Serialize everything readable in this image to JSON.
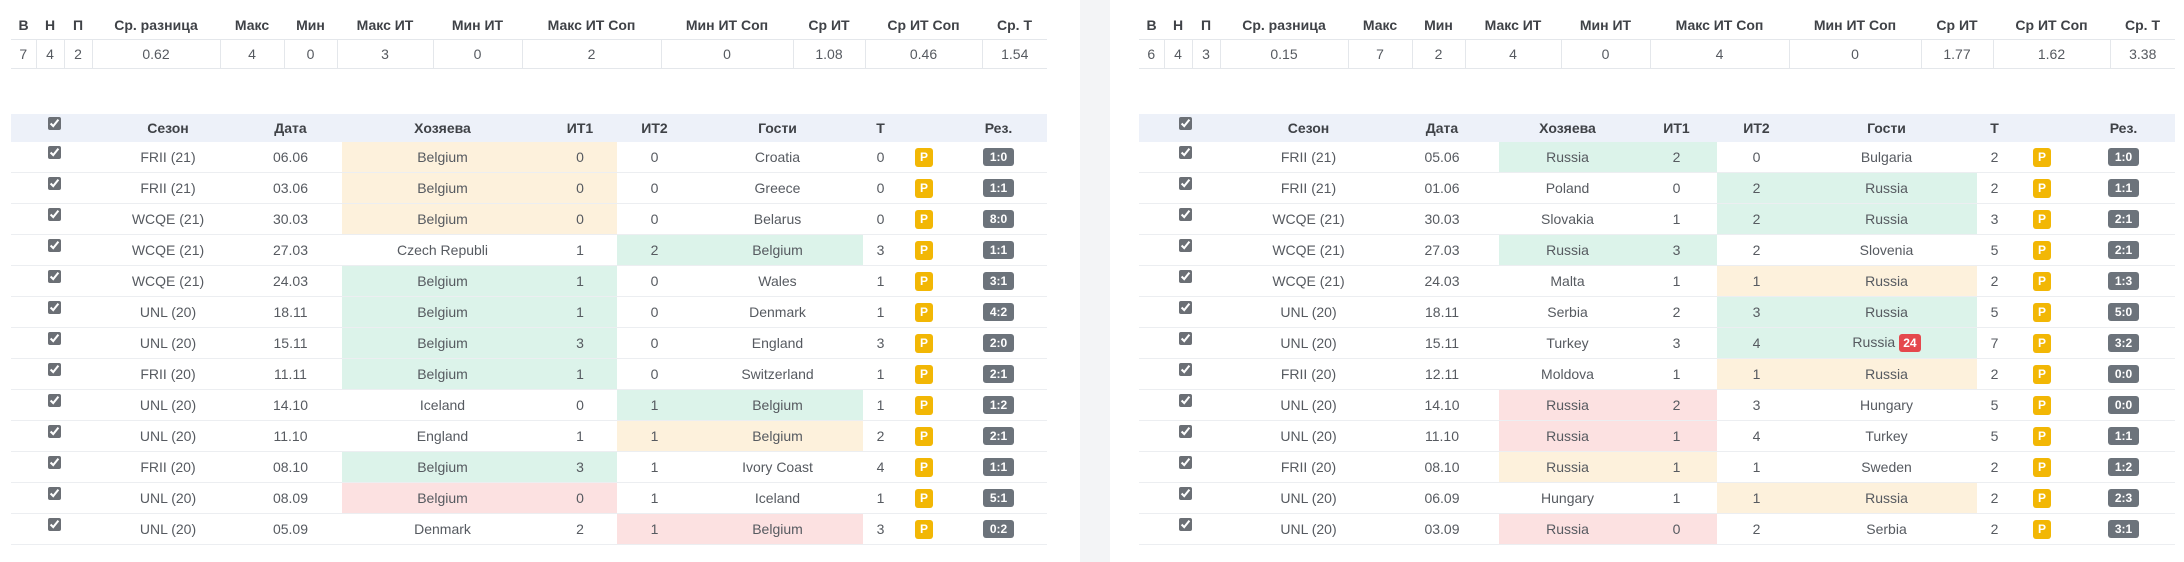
{
  "summary_headers": [
    "В",
    "Н",
    "П",
    "Ср. разница",
    "Макс",
    "Мин",
    "Макс ИТ",
    "Мин ИТ",
    "Макс ИТ Соп",
    "Мин ИТ Соп",
    "Ср ИТ",
    "Ср ИТ Соп",
    "Ср. Т"
  ],
  "match_headers": {
    "select_all_checked": true,
    "season": "Сезон",
    "date": "Дата",
    "home": "Хозяева",
    "it1": "ИТ1",
    "it2": "ИТ2",
    "away": "Гости",
    "total": "Т",
    "result": "Рез."
  },
  "p_badge_label": "P",
  "colors": {
    "win": "#dcf3ea",
    "draw": "#fdf1dc",
    "loss": "#fce1e1",
    "p_badge": "#f2b705",
    "result_badge": "#6c737b",
    "alert_badge": "#e5484d",
    "header_bg": "#edf1f9"
  },
  "icons": {
    "row_select": "checkbox-checked",
    "select_all": "checkbox-checked"
  },
  "panels": [
    {
      "summary_values": [
        "7",
        "4",
        "2",
        "0.62",
        "4",
        "0",
        "3",
        "0",
        "2",
        "0",
        "1.08",
        "0.46",
        "1.54"
      ],
      "rows": [
        {
          "checked": true,
          "season": "FRII (21)",
          "date": "06.06",
          "home": "Belgium",
          "it1": "0",
          "it2": "0",
          "away": "Croatia",
          "total": "0",
          "result": "1:0",
          "highlight": "home",
          "outcome": "draw"
        },
        {
          "checked": true,
          "season": "FRII (21)",
          "date": "03.06",
          "home": "Belgium",
          "it1": "0",
          "it2": "0",
          "away": "Greece",
          "total": "0",
          "result": "1:1",
          "highlight": "home",
          "outcome": "draw"
        },
        {
          "checked": true,
          "season": "WCQE (21)",
          "date": "30.03",
          "home": "Belgium",
          "it1": "0",
          "it2": "0",
          "away": "Belarus",
          "total": "0",
          "result": "8:0",
          "highlight": "home",
          "outcome": "draw"
        },
        {
          "checked": true,
          "season": "WCQE (21)",
          "date": "27.03",
          "home": "Czech Republi",
          "it1": "1",
          "it2": "2",
          "away": "Belgium",
          "total": "3",
          "result": "1:1",
          "highlight": "away",
          "outcome": "win"
        },
        {
          "checked": true,
          "season": "WCQE (21)",
          "date": "24.03",
          "home": "Belgium",
          "it1": "1",
          "it2": "0",
          "away": "Wales",
          "total": "1",
          "result": "3:1",
          "highlight": "home",
          "outcome": "win"
        },
        {
          "checked": true,
          "season": "UNL (20)",
          "date": "18.11",
          "home": "Belgium",
          "it1": "1",
          "it2": "0",
          "away": "Denmark",
          "total": "1",
          "result": "4:2",
          "highlight": "home",
          "outcome": "win"
        },
        {
          "checked": true,
          "season": "UNL (20)",
          "date": "15.11",
          "home": "Belgium",
          "it1": "3",
          "it2": "0",
          "away": "England",
          "total": "3",
          "result": "2:0",
          "highlight": "home",
          "outcome": "win"
        },
        {
          "checked": true,
          "season": "FRII (20)",
          "date": "11.11",
          "home": "Belgium",
          "it1": "1",
          "it2": "0",
          "away": "Switzerland",
          "total": "1",
          "result": "2:1",
          "highlight": "home",
          "outcome": "win"
        },
        {
          "checked": true,
          "season": "UNL (20)",
          "date": "14.10",
          "home": "Iceland",
          "it1": "0",
          "it2": "1",
          "away": "Belgium",
          "total": "1",
          "result": "1:2",
          "highlight": "away",
          "outcome": "win"
        },
        {
          "checked": true,
          "season": "UNL (20)",
          "date": "11.10",
          "home": "England",
          "it1": "1",
          "it2": "1",
          "away": "Belgium",
          "total": "2",
          "result": "2:1",
          "highlight": "away",
          "outcome": "draw"
        },
        {
          "checked": true,
          "season": "FRII (20)",
          "date": "08.10",
          "home": "Belgium",
          "it1": "3",
          "it2": "1",
          "away": "Ivory Coast",
          "total": "4",
          "result": "1:1",
          "highlight": "home",
          "outcome": "win"
        },
        {
          "checked": true,
          "season": "UNL (20)",
          "date": "08.09",
          "home": "Belgium",
          "it1": "0",
          "it2": "1",
          "away": "Iceland",
          "total": "1",
          "result": "5:1",
          "highlight": "home",
          "outcome": "loss"
        },
        {
          "checked": true,
          "season": "UNL (20)",
          "date": "05.09",
          "home": "Denmark",
          "it1": "2",
          "it2": "1",
          "away": "Belgium",
          "total": "3",
          "result": "0:2",
          "highlight": "away",
          "outcome": "loss"
        }
      ]
    },
    {
      "summary_values": [
        "6",
        "4",
        "3",
        "0.15",
        "7",
        "2",
        "4",
        "0",
        "4",
        "0",
        "1.77",
        "1.62",
        "3.38"
      ],
      "rows": [
        {
          "checked": true,
          "season": "FRII (21)",
          "date": "05.06",
          "home": "Russia",
          "it1": "2",
          "it2": "0",
          "away": "Bulgaria",
          "total": "2",
          "result": "1:0",
          "highlight": "home",
          "outcome": "win"
        },
        {
          "checked": true,
          "season": "FRII (21)",
          "date": "01.06",
          "home": "Poland",
          "it1": "0",
          "it2": "2",
          "away": "Russia",
          "total": "2",
          "result": "1:1",
          "highlight": "away",
          "outcome": "win"
        },
        {
          "checked": true,
          "season": "WCQE (21)",
          "date": "30.03",
          "home": "Slovakia",
          "it1": "1",
          "it2": "2",
          "away": "Russia",
          "total": "3",
          "result": "2:1",
          "highlight": "away",
          "outcome": "win"
        },
        {
          "checked": true,
          "season": "WCQE (21)",
          "date": "27.03",
          "home": "Russia",
          "it1": "3",
          "it2": "2",
          "away": "Slovenia",
          "total": "5",
          "result": "2:1",
          "highlight": "home",
          "outcome": "win"
        },
        {
          "checked": true,
          "season": "WCQE (21)",
          "date": "24.03",
          "home": "Malta",
          "it1": "1",
          "it2": "1",
          "away": "Russia",
          "total": "2",
          "result": "1:3",
          "highlight": "away",
          "outcome": "draw"
        },
        {
          "checked": true,
          "season": "UNL (20)",
          "date": "18.11",
          "home": "Serbia",
          "it1": "2",
          "it2": "3",
          "away": "Russia",
          "total": "5",
          "result": "5:0",
          "highlight": "away",
          "outcome": "win"
        },
        {
          "checked": true,
          "season": "UNL (20)",
          "date": "15.11",
          "home": "Turkey",
          "it1": "3",
          "it2": "4",
          "away": "Russia",
          "away_badge": "24",
          "total": "7",
          "result": "3:2",
          "highlight": "away",
          "outcome": "win"
        },
        {
          "checked": true,
          "season": "FRII (20)",
          "date": "12.11",
          "home": "Moldova",
          "it1": "1",
          "it2": "1",
          "away": "Russia",
          "total": "2",
          "result": "0:0",
          "highlight": "away",
          "outcome": "draw"
        },
        {
          "checked": true,
          "season": "UNL (20)",
          "date": "14.10",
          "home": "Russia",
          "it1": "2",
          "it2": "3",
          "away": "Hungary",
          "total": "5",
          "result": "0:0",
          "highlight": "home",
          "outcome": "loss"
        },
        {
          "checked": true,
          "season": "UNL (20)",
          "date": "11.10",
          "home": "Russia",
          "it1": "1",
          "it2": "4",
          "away": "Turkey",
          "total": "5",
          "result": "1:1",
          "highlight": "home",
          "outcome": "loss"
        },
        {
          "checked": true,
          "season": "FRII (20)",
          "date": "08.10",
          "home": "Russia",
          "it1": "1",
          "it2": "1",
          "away": "Sweden",
          "total": "2",
          "result": "1:2",
          "highlight": "home",
          "outcome": "draw"
        },
        {
          "checked": true,
          "season": "UNL (20)",
          "date": "06.09",
          "home": "Hungary",
          "it1": "1",
          "it2": "1",
          "away": "Russia",
          "total": "2",
          "result": "2:3",
          "highlight": "away",
          "outcome": "draw"
        },
        {
          "checked": true,
          "season": "UNL (20)",
          "date": "03.09",
          "home": "Russia",
          "it1": "0",
          "it2": "2",
          "away": "Serbia",
          "total": "2",
          "result": "3:1",
          "highlight": "home",
          "outcome": "loss"
        }
      ]
    }
  ]
}
